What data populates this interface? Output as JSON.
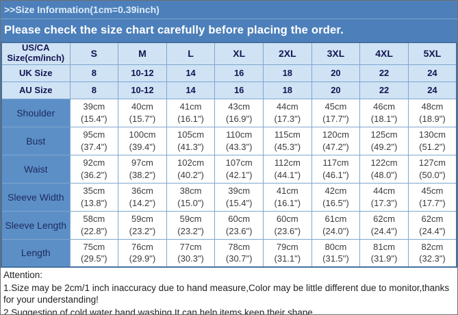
{
  "title": ">>Size Information(1cm=0.39inch)",
  "banner": "Please check the size chart carefully before placing the order.",
  "colors": {
    "header_blue": "#4d80ba",
    "light_row_blue": "#cfe3f5",
    "label_column_blue": "#5d8fc7",
    "grid_border": "#7fa6cf",
    "header_text_navy": "#13134f"
  },
  "table": {
    "corner": [
      "US/CA",
      "Size(cm/inch)"
    ],
    "sizes": [
      "S",
      "M",
      "L",
      "XL",
      "2XL",
      "3XL",
      "4XL",
      "5XL"
    ],
    "size_rows": [
      {
        "label": "UK Size",
        "values": [
          "8",
          "10-12",
          "14",
          "16",
          "18",
          "20",
          "22",
          "24"
        ]
      },
      {
        "label": "AU Size",
        "values": [
          "8",
          "10-12",
          "14",
          "16",
          "18",
          "20",
          "22",
          "24"
        ]
      }
    ],
    "measurements": [
      {
        "label": "Shoulder",
        "cm": [
          "39cm",
          "40cm",
          "41cm",
          "43cm",
          "44cm",
          "45cm",
          "46cm",
          "48cm"
        ],
        "inch": [
          "(15.4\")",
          "(15.7\")",
          "(16.1\")",
          "(16.9\")",
          "(17.3\")",
          "(17.7\")",
          "(18.1\")",
          "(18.9\")"
        ]
      },
      {
        "label": "Bust",
        "cm": [
          "95cm",
          "100cm",
          "105cm",
          "110cm",
          "115cm",
          "120cm",
          "125cm",
          "130cm"
        ],
        "inch": [
          "(37.4\")",
          "(39.4\")",
          "(41.3\")",
          "(43.3\")",
          "(45.3\")",
          "(47.2\")",
          "(49.2\")",
          "(51.2\")"
        ]
      },
      {
        "label": "Waist",
        "cm": [
          "92cm",
          "97cm",
          "102cm",
          "107cm",
          "112cm",
          "117cm",
          "122cm",
          "127cm"
        ],
        "inch": [
          "(36.2\")",
          "(38.2\")",
          "(40.2\")",
          "(42.1\")",
          "(44.1\")",
          "(46.1\")",
          "(48.0\")",
          "(50.0\")"
        ]
      },
      {
        "label": "Sleeve Width",
        "cm": [
          "35cm",
          "36cm",
          "38cm",
          "39cm",
          "41cm",
          "42cm",
          "44cm",
          "45cm"
        ],
        "inch": [
          "(13.8\")",
          "(14.2\")",
          "(15.0\")",
          "(15.4\")",
          "(16.1\")",
          "(16.5\")",
          "(17.3\")",
          "(17.7\")"
        ]
      },
      {
        "label": "Sleeve Length",
        "cm": [
          "58cm",
          "59cm",
          "59cm",
          "60cm",
          "60cm",
          "61cm",
          "62cm",
          "62cm"
        ],
        "inch": [
          "(22.8\")",
          "(23.2\")",
          "(23.2\")",
          "(23.6\")",
          "(23.6\")",
          "(24.0\")",
          "(24.4\")",
          "(24.4\")"
        ]
      },
      {
        "label": "Length",
        "cm": [
          "75cm",
          "76cm",
          "77cm",
          "78cm",
          "79cm",
          "80cm",
          "81cm",
          "82cm"
        ],
        "inch": [
          "(29.5\")",
          "(29.9\")",
          "(30.3\")",
          "(30.7\")",
          "(31.1\")",
          "(31.5\")",
          "(31.9\")",
          "(32.3\")"
        ]
      }
    ]
  },
  "attention": {
    "heading": "Attention:",
    "line1": "1.Size may be 2cm/1 inch inaccuracy due to hand measure,Color may be little different due to monitor,thanks for your understanding!",
    "line2": "2.Suggestion of cold water hand washing.It can help items keep their shape."
  }
}
